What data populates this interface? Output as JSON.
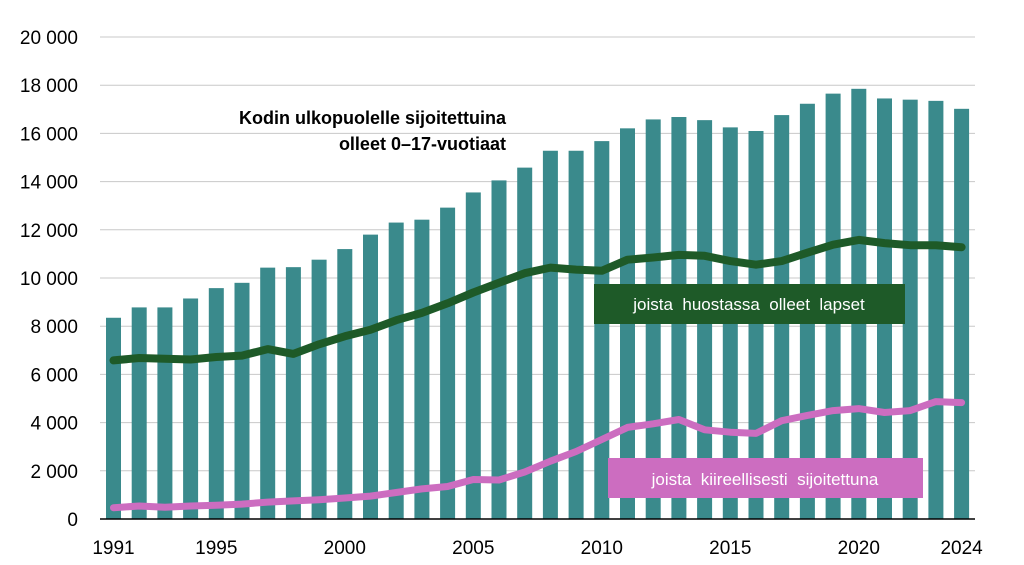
{
  "chart_data": {
    "type": "bar",
    "title_lines": [
      "Kodin ulkopuolelle  sijoitettuina",
      "olleet 0–17-vuotiaat"
    ],
    "xlabel": "",
    "ylabel": "",
    "ylim": [
      0,
      20000
    ],
    "y_ticks": [
      0,
      2000,
      4000,
      6000,
      8000,
      10000,
      12000,
      14000,
      16000,
      18000,
      20000
    ],
    "y_tick_labels": [
      "0",
      "2 000",
      "4 000",
      "6 000",
      "8 000",
      "10 000",
      "12 000",
      "14 000",
      "16 000",
      "18 000",
      "20 000"
    ],
    "x_tick_labels": [
      "1991",
      "1995",
      "2000",
      "2005",
      "2010",
      "2015",
      "2020",
      "2024"
    ],
    "grid": true,
    "categories": [
      1991,
      1992,
      1993,
      1994,
      1995,
      1996,
      1997,
      1998,
      1999,
      2000,
      2001,
      2002,
      2003,
      2004,
      2005,
      2006,
      2007,
      2008,
      2009,
      2010,
      2011,
      2012,
      2013,
      2014,
      2015,
      2016,
      2017,
      2018,
      2019,
      2020,
      2021,
      2022,
      2023,
      2024
    ],
    "bars": {
      "color": "#3A8A8C",
      "values": [
        8350,
        8780,
        8780,
        9150,
        9580,
        9800,
        10430,
        10450,
        10760,
        11200,
        11800,
        12300,
        12420,
        12920,
        13550,
        14050,
        14580,
        15280,
        15280,
        15680,
        16210,
        16580,
        16680,
        16550,
        16250,
        16100,
        16760,
        17230,
        17650,
        17850,
        17450,
        17400,
        17350,
        17020
      ]
    },
    "lines": [
      {
        "name": "joista  huostassa  olleet  lapset",
        "color": "#1E5A28",
        "label_bg": "#1E5A28",
        "values": [
          6580,
          6680,
          6650,
          6620,
          6720,
          6780,
          7050,
          6850,
          7250,
          7580,
          7850,
          8250,
          8550,
          8950,
          9400,
          9800,
          10200,
          10430,
          10350,
          10300,
          10760,
          10850,
          10960,
          10920,
          10700,
          10550,
          10700,
          11050,
          11380,
          11580,
          11450,
          11360,
          11360,
          11280
        ]
      },
      {
        "name": "joista  kiireellisesti  sijoitettuna",
        "color": "#CC6DC0",
        "label_bg": "#CC6DC0",
        "values": [
          470,
          540,
          490,
          540,
          570,
          620,
          700,
          750,
          800,
          870,
          950,
          1100,
          1250,
          1350,
          1640,
          1620,
          1950,
          2400,
          2800,
          3300,
          3800,
          3950,
          4130,
          3700,
          3600,
          3550,
          4080,
          4300,
          4500,
          4580,
          4420,
          4500,
          4870,
          4830
        ]
      }
    ]
  }
}
